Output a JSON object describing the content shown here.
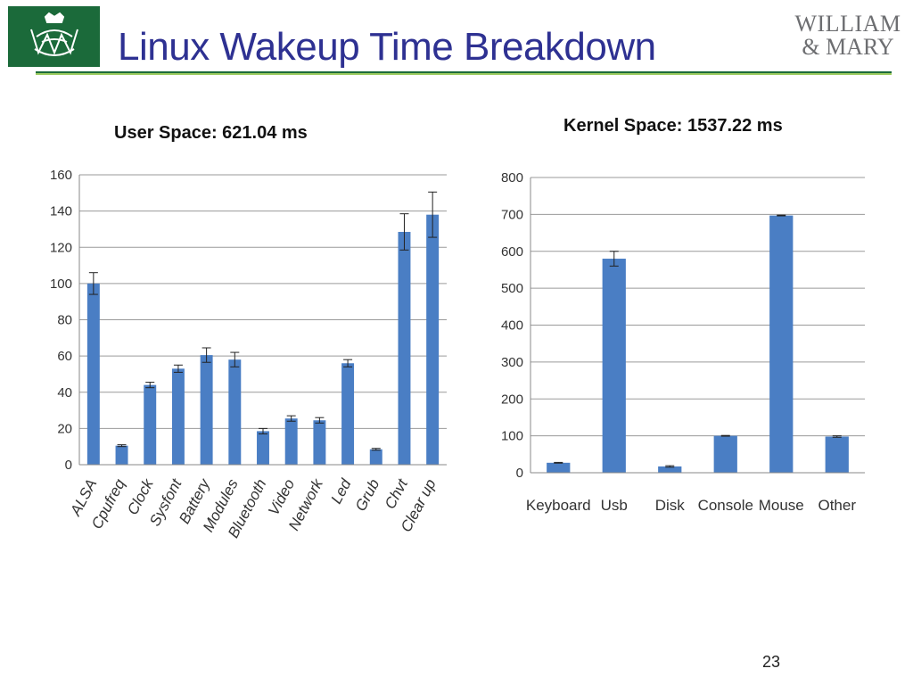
{
  "slide": {
    "title": "Linux Wakeup Time Breakdown",
    "brand_line1": "WILLIAM",
    "brand_line2": "& MARY",
    "page_number": "23"
  },
  "colors": {
    "bar": "#4a7ec4",
    "title": "#2e3192",
    "green": "#1b6a3a",
    "light_green": "#9ccb5f"
  },
  "icons": {
    "logo": "cypher-crest-icon"
  },
  "headings": {
    "user": "User Space: 621.04 ms",
    "kernel": "Kernel Space: 1537.22 ms"
  },
  "chart_data": [
    {
      "type": "bar",
      "title": "",
      "xlabel": "",
      "ylabel": "",
      "ylim": [
        0,
        160
      ],
      "yticks": [
        0,
        20,
        40,
        60,
        80,
        100,
        120,
        140,
        160
      ],
      "grid": true,
      "categories": [
        "ALSA",
        "Cpufreq",
        "Clock",
        "Sysfont",
        "Battery",
        "Modules",
        "Bluetooth",
        "Video",
        "Network",
        "Led",
        "Grub",
        "Chvt",
        "Clear up"
      ],
      "values": [
        100,
        10.5,
        44,
        53,
        60.5,
        58,
        18.5,
        25.5,
        24.5,
        56,
        8.5,
        128.5,
        138
      ],
      "errors": [
        6,
        0.5,
        1.5,
        2,
        4,
        4,
        1.5,
        1.5,
        1.5,
        2,
        0.5,
        10,
        12.5
      ]
    },
    {
      "type": "bar",
      "title": "",
      "xlabel": "",
      "ylabel": "",
      "ylim": [
        0,
        800
      ],
      "yticks": [
        0,
        100,
        200,
        300,
        400,
        500,
        600,
        700,
        800
      ],
      "grid": true,
      "categories": [
        "Keyboard",
        "Usb",
        "Disk",
        "Console",
        "Mouse",
        "Other"
      ],
      "values": [
        27,
        580,
        17,
        100,
        697,
        98
      ],
      "errors": [
        1,
        20,
        2,
        1,
        1,
        2
      ]
    }
  ]
}
